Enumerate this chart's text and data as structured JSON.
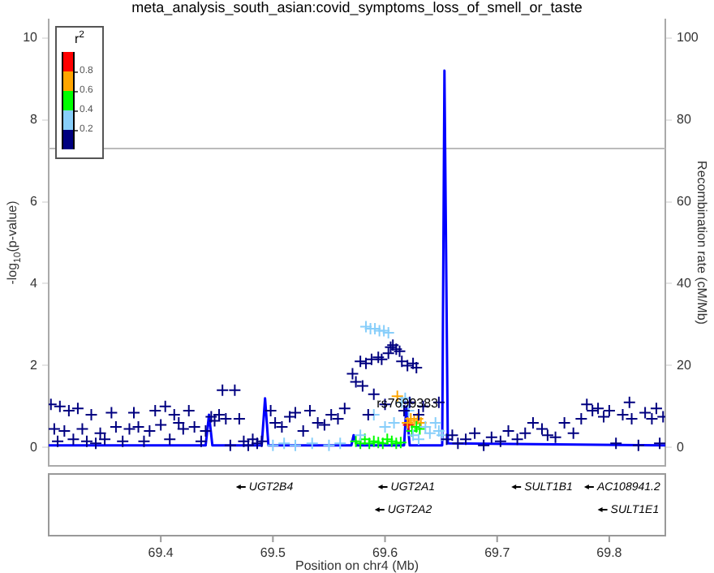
{
  "chart_data": {
    "type": "scatter",
    "title": "meta_analysis_south_asian:covid_symptoms_loss_of_smell_or_taste",
    "xlabel": "Position on chr4 (Mb)",
    "ylabel": "-log$_{10}$(p-value)",
    "y2label": "Recombination rate (cM/Mb)",
    "xlim": [
      69.3,
      69.85
    ],
    "xticks": [
      69.4,
      69.5,
      69.6,
      69.7,
      69.8
    ],
    "ylim": [
      -0.45,
      10.45
    ],
    "yticks": [
      0,
      2,
      4,
      6,
      8,
      10
    ],
    "y2lim": [
      -4.5,
      104.5
    ],
    "y2ticks": [
      0,
      20,
      40,
      60,
      80,
      100
    ],
    "annotations": [
      {
        "text": "rs7699383",
        "x": 69.62,
        "y": 0.9
      },
      "r$^{2}$",
      "0.8",
      "0.6",
      "0.4",
      "0.2",
      "UGT2B4",
      "UGT2A1",
      "SULT1B1",
      "AC108941.2",
      "UGT2A2",
      "SULT1E1"
    ],
    "ref_lines": [
      {
        "axis": "y",
        "value": 7.3,
        "color": "#bbbbbb"
      }
    ],
    "series": [
      {
        "color": "#000080",
        "marker": "cross",
        "x": [
          69.302,
          69.305,
          69.308,
          69.31,
          69.314,
          69.318,
          69.322,
          69.326,
          69.33,
          69.334,
          69.338,
          69.342,
          69.346,
          69.35,
          69.356,
          69.36,
          69.366,
          69.372,
          69.376,
          69.38,
          69.385,
          69.39,
          69.395,
          69.4,
          69.404,
          69.408,
          69.412,
          69.416,
          69.42,
          69.425,
          69.43,
          69.436,
          69.44,
          69.445,
          69.448,
          69.452,
          69.455,
          69.458,
          69.462,
          69.466,
          69.47,
          69.474,
          69.478,
          69.482,
          69.486,
          69.49,
          69.498,
          69.502,
          69.508,
          69.515,
          69.52,
          69.527,
          69.533,
          69.54,
          69.546,
          69.552,
          69.558,
          69.564,
          69.571,
          69.574,
          69.578,
          69.58,
          69.583,
          69.585,
          69.588,
          69.59,
          69.594,
          69.597,
          69.6,
          69.603,
          69.605,
          69.607,
          69.61,
          69.613,
          69.615,
          69.617,
          69.62,
          69.622,
          69.625,
          69.628,
          69.63,
          69.634,
          69.648,
          69.655,
          69.66,
          69.665,
          69.672,
          69.68,
          69.688,
          69.695,
          69.703,
          69.71,
          69.718,
          69.725,
          69.732,
          69.74,
          69.745,
          69.752,
          69.76,
          69.768,
          69.775,
          69.78,
          69.785,
          69.79,
          69.795,
          69.8,
          69.806,
          69.812,
          69.818,
          69.82,
          69.826,
          69.832,
          69.838,
          69.842,
          69.845,
          69.848
        ],
        "values": [
          1.05,
          0.45,
          0.15,
          1.0,
          0.4,
          0.9,
          0.2,
          0.95,
          0.45,
          0.15,
          0.8,
          0.1,
          0.35,
          0.2,
          0.85,
          0.5,
          0.15,
          0.45,
          0.85,
          0.5,
          0.15,
          0.4,
          0.9,
          0.55,
          1.0,
          0.2,
          0.8,
          0.6,
          0.45,
          0.9,
          0.5,
          0.15,
          0.4,
          0.75,
          0.65,
          0.8,
          1.4,
          0.7,
          0.05,
          1.4,
          0.7,
          0.15,
          0.05,
          0.2,
          0.1,
          0.15,
          0.9,
          0.6,
          0.5,
          0.75,
          0.85,
          0.4,
          0.9,
          0.6,
          0.55,
          0.8,
          0.7,
          0.95,
          1.8,
          1.6,
          2.1,
          1.5,
          2.05,
          0.8,
          2.15,
          1.3,
          2.2,
          2.15,
          1.05,
          2.3,
          2.45,
          2.5,
          2.4,
          2.35,
          2.1,
          0.9,
          2.0,
          1.1,
          2.05,
          1.95,
          0.8,
          1.0,
          1.1,
          0.2,
          0.3,
          0.1,
          0.2,
          0.35,
          0.05,
          0.25,
          0.15,
          0.4,
          0.2,
          0.35,
          0.6,
          0.45,
          0.3,
          0.25,
          0.6,
          0.35,
          0.7,
          1.05,
          0.9,
          0.95,
          0.75,
          0.9,
          0.1,
          0.8,
          1.1,
          0.7,
          0.05,
          0.85,
          0.7,
          0.95,
          0.1,
          0.75
        ]
      },
      {
        "color": "#87cefa",
        "marker": "cross",
        "x": [
          69.5,
          69.51,
          69.52,
          69.535,
          69.55,
          69.56,
          69.583,
          69.587,
          69.591,
          69.595,
          69.599,
          69.603,
          69.578,
          69.59,
          69.6,
          69.608,
          69.615,
          69.618,
          69.621,
          69.625,
          69.63,
          69.636,
          69.64,
          69.645,
          69.648,
          69.651
        ],
        "values": [
          0.05,
          0.1,
          0.05,
          0.1,
          0.05,
          0.1,
          2.95,
          2.9,
          2.9,
          2.85,
          2.85,
          2.8,
          0.3,
          0.8,
          0.5,
          0.6,
          1.1,
          1.2,
          0.9,
          0.3,
          0.2,
          0.5,
          0.35,
          0.6,
          0.4,
          0.3
        ]
      },
      {
        "color": "#00ff00",
        "marker": "cross",
        "x": [
          69.574,
          69.578,
          69.582,
          69.586,
          69.59,
          69.594,
          69.598,
          69.602,
          69.606,
          69.61,
          69.614,
          69.624,
          69.628,
          69.631
        ],
        "values": [
          0.15,
          0.1,
          0.2,
          0.1,
          0.15,
          0.12,
          0.1,
          0.2,
          0.15,
          0.1,
          0.12,
          0.4,
          0.5,
          0.45
        ]
      },
      {
        "color": "#ffa500",
        "marker": "cross",
        "x": [
          69.611,
          69.62,
          69.623,
          69.626,
          69.629,
          69.632
        ],
        "values": [
          1.25,
          0.6,
          0.7,
          0.65,
          0.7,
          0.6
        ]
      },
      {
        "color": "#ff0000",
        "marker": "cross",
        "x": [
          69.621
        ],
        "values": [
          0.55
        ]
      },
      {
        "type": "line",
        "axis": "y2",
        "color": "#0000ff",
        "marker": "none",
        "x": [
          69.3,
          69.44,
          69.443,
          69.446,
          69.49,
          69.493,
          69.496,
          69.57,
          69.572,
          69.575,
          69.617,
          69.619,
          69.622,
          69.651,
          69.653,
          69.656,
          69.85
        ],
        "values": [
          0.5,
          0.5,
          8,
          0.5,
          0.5,
          12,
          0.5,
          0.5,
          3,
          0.5,
          0.5,
          10,
          0.5,
          0.5,
          92,
          1,
          0.5
        ]
      }
    ]
  }
}
